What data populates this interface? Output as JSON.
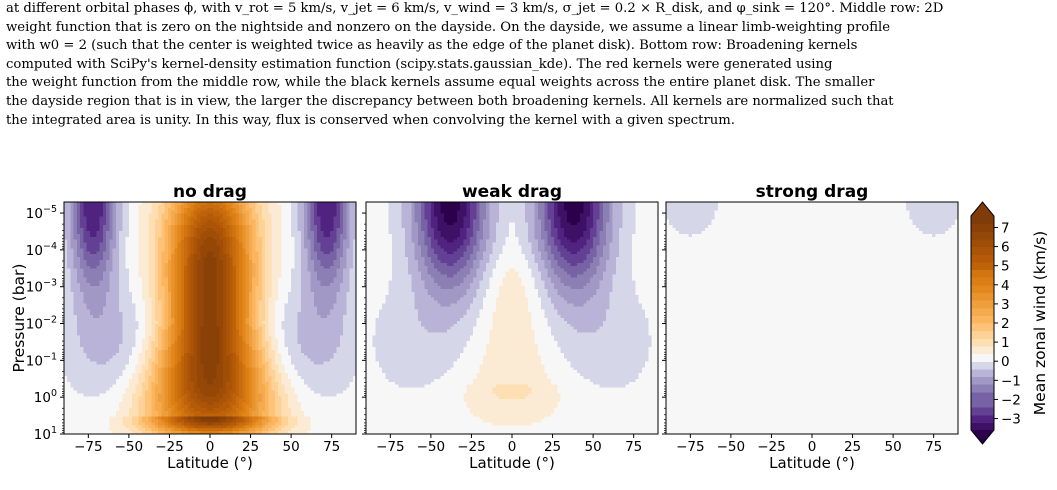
{
  "caption": {
    "lines": [
      "at different orbital phases ϕ, with v_rot = 5 km/s, v_jet = 6 km/s, v_wind = 3 km/s, σ_jet = 0.2 × R_disk, and φ_sink = 120°. Middle row: 2D",
      "weight function that is zero on the nightside and nonzero on the dayside. On the dayside, we assume a linear limb-weighting profile",
      "with w0 = 2 (such that the center is weighted twice as heavily as the edge of the planet disk). Bottom row: Broadening kernels",
      "computed with SciPy's kernel-density estimation function (scipy.stats.gaussian_kde). The red kernels were generated using",
      "the weight function from the middle row, while the black kernels assume equal weights across the entire planet disk. The smaller",
      "the dayside region that is in view, the larger the discrepancy between both broadening kernels. All kernels are normalized such that",
      "the integrated area is unity. In this way, flux is conserved when convolving the kernel with a given spectrum."
    ]
  },
  "chart_data": {
    "type": "heatmap",
    "panels": [
      {
        "title": "no drag",
        "xlabel": "Latitude (°)",
        "ylabel": "Pressure (bar)",
        "features": {
          "jet_peak": 7.3,
          "jet_width_deg": 25,
          "jet_bottom_log_p": 0.5,
          "jet_top_log_p": -5.2,
          "highlat_min": -3.0,
          "highlat_center_deg": 72,
          "highlat_width_deg": 14,
          "highlat_bottom_log_p": -2.2,
          "deep_east": 0.6,
          "midlat_west": -0.7
        }
      },
      {
        "title": "weak drag",
        "xlabel": "Latitude (°)",
        "features": {
          "jet_peak": 0.5,
          "jet_width_deg": 20,
          "jet_bottom_log_p": -0.3,
          "jet_top_log_p": -3.5,
          "highlat_min": -3.6,
          "highlat_center_deg": 38,
          "highlat_width_deg": 22,
          "highlat_bottom_log_p": -2.2,
          "deep_east": 0.3,
          "midlat_west": -0.4
        }
      },
      {
        "title": "strong drag",
        "xlabel": "Latitude (°)",
        "features": {
          "jet_peak": 0.0,
          "jet_width_deg": 20,
          "jet_bottom_log_p": -2,
          "jet_top_log_p": -4,
          "highlat_min": -0.45,
          "highlat_center_deg": 75,
          "highlat_width_deg": 18,
          "highlat_bottom_log_p": -4.0,
          "deep_east": 0.0,
          "midlat_west": 0.0
        }
      }
    ],
    "xlim": [
      -90,
      90
    ],
    "xticks": [
      -75,
      -50,
      -25,
      0,
      25,
      50,
      75
    ],
    "xtick_labels": [
      "−75",
      "−50",
      "−25",
      "0",
      "25",
      "50",
      "75"
    ],
    "ylim_log10": [
      -5.3,
      1
    ],
    "yticks_log10": [
      -5,
      -4,
      -3,
      -2,
      -1,
      0,
      1
    ],
    "ytick_labels": [
      [
        "10",
        "−5"
      ],
      [
        "10",
        "−4"
      ],
      [
        "10",
        "−3"
      ],
      [
        "10",
        "−2"
      ],
      [
        "10",
        "−1"
      ],
      [
        "10",
        "0"
      ],
      [
        "10",
        "1"
      ]
    ],
    "colorbar": {
      "label": "Mean zonal wind (km/s)",
      "vmin": -3.6,
      "vmax": 7.6,
      "ticks": [
        7,
        6,
        5,
        4,
        3,
        2,
        1,
        0,
        -1,
        -2,
        -3
      ],
      "tick_labels": [
        "7",
        "6",
        "5",
        "4",
        "3",
        "2",
        "1",
        "0",
        "−1",
        "−2",
        "−3"
      ],
      "colormap": "PuOr_r",
      "extend": "both"
    },
    "colors": {
      "neg_deep": "#2d004b",
      "neg_light": "#f7f7f7",
      "pos_light": "#f7f7f7",
      "pos_deep": "#7f3b08"
    }
  }
}
